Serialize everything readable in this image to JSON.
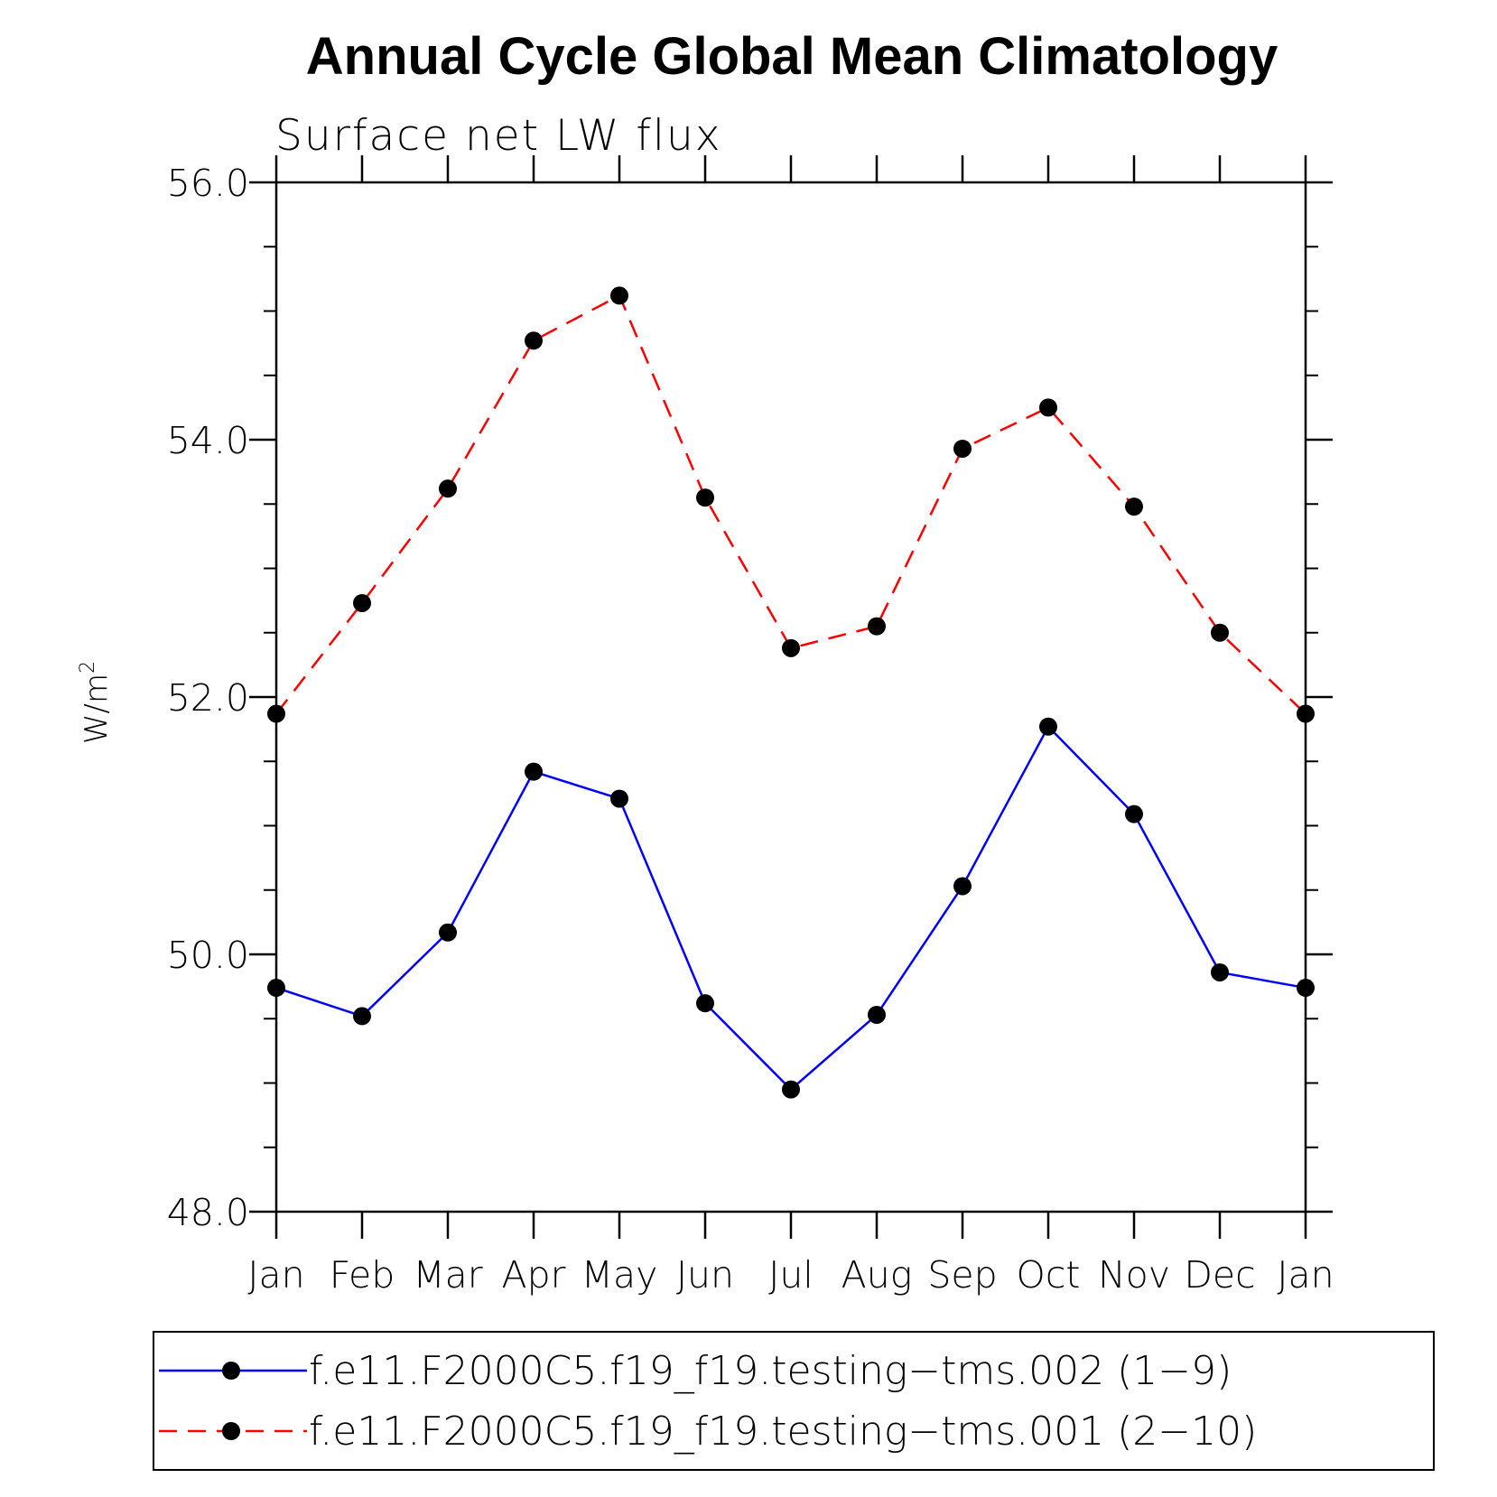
{
  "chart_data": {
    "type": "line",
    "title": "Annual Cycle Global Mean Climatology",
    "subtitle": "Surface net LW flux",
    "xlabel": "",
    "ylabel": "W/m",
    "ylabel_superscript": "2",
    "categories": [
      "Jan",
      "Feb",
      "Mar",
      "Apr",
      "May",
      "Jun",
      "Jul",
      "Aug",
      "Sep",
      "Oct",
      "Nov",
      "Dec",
      "Jan"
    ],
    "ylim": [
      48.0,
      56.0
    ],
    "yticks": [
      "48.0",
      "50.0",
      "52.0",
      "54.0",
      "56.0"
    ],
    "grid": false,
    "legend_position": "bottom",
    "series": [
      {
        "name": "f.e11.F2000C5.f19_f19.testing−tms.002 (1−9)",
        "color": "#0000ff",
        "line_style": "solid",
        "marker": "filled-circle",
        "values": [
          49.74,
          49.52,
          50.17,
          51.42,
          51.21,
          49.62,
          48.95,
          49.53,
          50.53,
          51.77,
          51.09,
          49.86,
          49.74
        ]
      },
      {
        "name": "f.e11.F2000C5.f19_f19.testing−tms.001 (2−10)",
        "color": "#ff0000",
        "line_style": "dashed",
        "marker": "filled-circle",
        "values": [
          51.87,
          52.73,
          53.62,
          54.77,
          55.12,
          53.55,
          52.38,
          52.55,
          53.93,
          54.25,
          53.48,
          52.5,
          51.87
        ]
      }
    ]
  }
}
